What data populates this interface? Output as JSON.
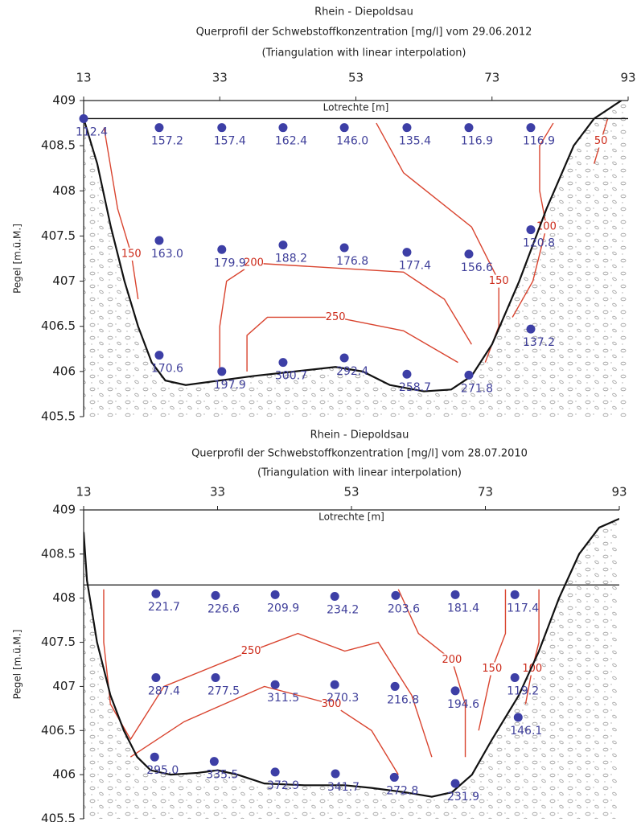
{
  "chart_data": [
    {
      "type": "scatter",
      "title": "Rhein - Diepoldsau",
      "subtitle": "Querprofil der Schwebstoffkonzentration [mg/l] vom 29.06.2012",
      "note": "(Triangulation with linear interpolation)",
      "x_label": "Lotrechte [m]",
      "y_label": "Pegel [m.ü.M.]",
      "xlim": [
        13,
        93
      ],
      "xticks": [
        13,
        33,
        53,
        73,
        93
      ],
      "ylim": [
        405.5,
        409
      ],
      "yticks": [
        405.5,
        406,
        406.5,
        407,
        407.5,
        408,
        408.5,
        409
      ],
      "color": "#3d3fa6",
      "contour_color": "#d9442f",
      "water_level": 408.8,
      "x": [
        13,
        24.1,
        33.3,
        42.3,
        51.3,
        60.5,
        69.6,
        78.7,
        24.1,
        33.3,
        42.3,
        51.3,
        60.5,
        69.6,
        78.7,
        78.7,
        24.1,
        33.3,
        42.3,
        51.3,
        60.5,
        69.6
      ],
      "y": [
        408.8,
        408.7,
        408.7,
        408.7,
        408.7,
        408.7,
        408.7,
        408.7,
        407.45,
        407.35,
        407.4,
        407.37,
        407.32,
        407.3,
        407.57,
        406.47,
        406.18,
        406.0,
        406.1,
        406.15,
        405.97,
        405.96
      ],
      "values": [
        112.4,
        157.2,
        157.4,
        162.4,
        146.0,
        135.4,
        116.9,
        116.9,
        163.0,
        179.9,
        188.2,
        176.8,
        177.4,
        156.6,
        120.8,
        137.2,
        170.6,
        197.9,
        300.7,
        292.4,
        258.7,
        271.8
      ],
      "value_labels": [
        "112.4",
        "157.2",
        "157.4",
        "162.4",
        "146.0",
        "135.4",
        "116.9",
        "116.9",
        "163.0",
        "179.9",
        "188.2",
        "176.8",
        "177.4",
        "156.6",
        "120.8",
        "137.2",
        "170.6",
        "197.9",
        "300.7",
        "292.4",
        "258.7",
        "271.8"
      ],
      "profile": {
        "x": [
          13,
          15,
          17,
          19,
          21,
          23,
          25,
          28,
          33,
          38,
          44,
          50,
          54,
          58,
          63,
          67,
          70,
          73,
          77,
          81,
          85,
          88,
          92
        ],
        "y": [
          408.8,
          408.3,
          407.6,
          407.0,
          406.5,
          406.1,
          405.9,
          405.85,
          405.9,
          405.95,
          406.0,
          406.05,
          406.0,
          405.85,
          405.78,
          405.8,
          405.95,
          406.3,
          407.0,
          407.8,
          408.5,
          408.8,
          409
        ]
      },
      "contours": [
        {
          "level": 50,
          "x": [
            90,
            89,
            88
          ],
          "y": [
            408.8,
            408.55,
            408.3
          ]
        },
        {
          "level": 100,
          "x": [
            82,
            80,
            80,
            81,
            79,
            76
          ],
          "y": [
            408.75,
            408.5,
            408.0,
            407.6,
            407.0,
            406.6
          ]
        },
        {
          "level": 150,
          "x": [
            56,
            60,
            70,
            74,
            74,
            72
          ],
          "y": [
            408.75,
            408.2,
            407.6,
            407.0,
            406.5,
            406.1
          ]
        },
        {
          "level": 150,
          "x": [
            16,
            18,
            20,
            21
          ],
          "y": [
            408.7,
            407.8,
            407.3,
            406.8
          ]
        },
        {
          "level": 200,
          "x": [
            33,
            33,
            34,
            38,
            60,
            66,
            70
          ],
          "y": [
            406.0,
            406.5,
            407.0,
            407.2,
            407.1,
            406.8,
            406.3
          ]
        },
        {
          "level": 250,
          "x": [
            37,
            37,
            40,
            50,
            60,
            68
          ],
          "y": [
            406.0,
            406.4,
            406.6,
            406.6,
            406.45,
            406.1
          ]
        }
      ]
    },
    {
      "type": "scatter",
      "title": "Rhein - Diepoldsau",
      "subtitle": "Querprofil der Schwebstoffkonzentration [mg/l] vom 28.07.2010",
      "note": "(Triangulation with linear interpolation)",
      "x_label": "Lotrechte [m]",
      "y_label": "Pegel [m.ü.M.]",
      "xlim": [
        13,
        93
      ],
      "xticks": [
        13,
        33,
        53,
        73,
        93
      ],
      "ylim": [
        405.5,
        409
      ],
      "yticks": [
        405.5,
        406,
        406.5,
        407,
        407.5,
        408,
        408.5,
        409
      ],
      "color": "#3d3fa6",
      "contour_color": "#d9442f",
      "water_level": 408.15,
      "x": [
        23.8,
        32.7,
        41.6,
        50.5,
        59.6,
        68.5,
        77.4,
        23.8,
        32.7,
        41.6,
        50.5,
        59.5,
        68.5,
        77.4,
        77.9,
        23.6,
        32.5,
        41.6,
        50.6,
        59.4,
        68.5
      ],
      "y": [
        408.05,
        408.03,
        408.04,
        408.02,
        408.03,
        408.04,
        408.04,
        407.1,
        407.1,
        407.02,
        407.02,
        407.0,
        406.95,
        407.1,
        406.65,
        406.2,
        406.15,
        406.03,
        406.01,
        405.97,
        405.9
      ],
      "values": [
        221.7,
        226.6,
        209.9,
        234.2,
        203.6,
        181.4,
        117.4,
        287.4,
        277.5,
        311.5,
        270.3,
        216.8,
        194.6,
        119.2,
        146.1,
        295.0,
        335.5,
        372.9,
        341.7,
        272.8,
        231.9
      ],
      "value_labels": [
        "221.7",
        "226.6",
        "209.9",
        "234.2",
        "203.6",
        "181.4",
        "117.4",
        "287.4",
        "277.5",
        "311.5",
        "270.3",
        "216.8",
        "194.6",
        "119.2",
        "146.1",
        "295.0",
        "335.5",
        "372.9",
        "341.7",
        "272.8",
        "231.9"
      ],
      "profile": {
        "x": [
          13,
          13.5,
          15,
          17,
          19,
          21,
          23,
          26,
          30,
          33,
          36,
          40,
          46,
          52,
          56,
          61,
          65,
          68,
          71,
          74,
          78,
          81,
          84,
          87,
          90,
          93
        ],
        "y": [
          408.75,
          408.2,
          407.5,
          406.9,
          406.5,
          406.2,
          406.05,
          406.0,
          406.02,
          406.05,
          406.0,
          405.9,
          405.88,
          405.88,
          405.85,
          405.8,
          405.75,
          405.8,
          406.0,
          406.4,
          406.9,
          407.4,
          408.0,
          408.5,
          408.8,
          408.9
        ]
      },
      "contours": [
        {
          "level": 100,
          "x": [
            81,
            81,
            80,
            79
          ],
          "y": [
            408.1,
            407.5,
            407.2,
            406.8
          ]
        },
        {
          "level": 150,
          "x": [
            76,
            76,
            74,
            72
          ],
          "y": [
            408.1,
            407.6,
            407.2,
            406.5
          ]
        },
        {
          "level": 200,
          "x": [
            60,
            63,
            68,
            70,
            70
          ],
          "y": [
            408.1,
            407.6,
            407.3,
            406.8,
            406.2
          ]
        },
        {
          "level": 250,
          "x": [
            16,
            16,
            17,
            20,
            25,
            38,
            45,
            52,
            57,
            62,
            65
          ],
          "y": [
            408.1,
            407.5,
            406.8,
            406.4,
            407.0,
            407.4,
            407.6,
            407.4,
            407.5,
            406.9,
            406.2
          ]
        },
        {
          "level": 300,
          "x": [
            20,
            28,
            40,
            50,
            56,
            60
          ],
          "y": [
            406.2,
            406.6,
            407.0,
            406.8,
            406.5,
            406.0
          ]
        }
      ]
    }
  ]
}
